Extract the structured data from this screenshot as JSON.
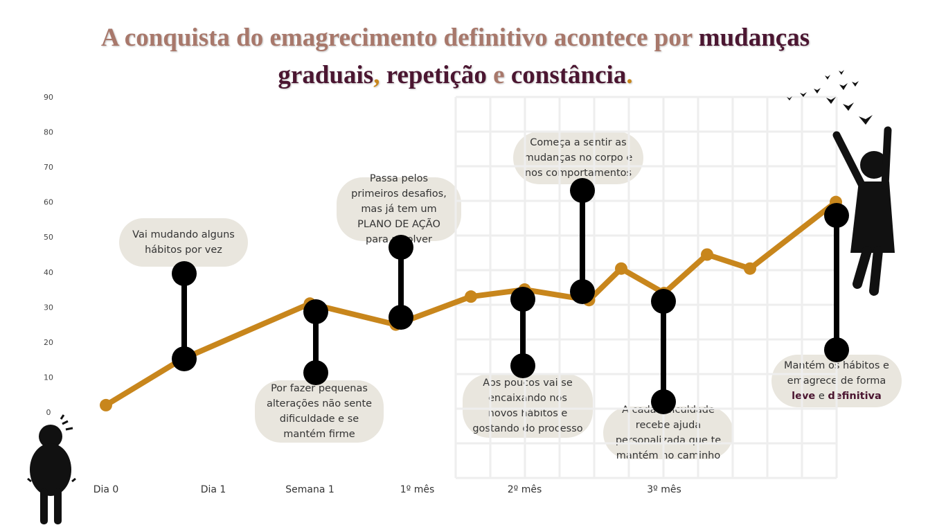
{
  "chart_data": {
    "type": "line",
    "title_parts": [
      {
        "text": "A conquista do emagrecimento definitivo acontece por ",
        "color": "#a8786b"
      },
      {
        "text": "mudanças graduais",
        "color": "#4b1631"
      },
      {
        "text": ", ",
        "color": "#c8861c"
      },
      {
        "text": "repetição",
        "color": "#4b1631"
      },
      {
        "text": " e ",
        "color": "#a8786b"
      },
      {
        "text": "constância",
        "color": "#4b1631"
      },
      {
        "text": ".",
        "color": "#c8861c"
      }
    ],
    "x": [
      0,
      0.7,
      1.9,
      2.7,
      3.4,
      3.9,
      4.5,
      4.8,
      5.2,
      5.6,
      6.0,
      6.8
    ],
    "series": [
      {
        "color": "#c8861c",
        "values": [
          2,
          15,
          31,
          25,
          33,
          35,
          32,
          41,
          34,
          45,
          41,
          60
        ]
      }
    ],
    "xlim": [
      0,
      7
    ],
    "xticks": [
      {
        "value": 0,
        "label": "Dia 0"
      },
      {
        "value": 1,
        "label": "Dia 1"
      },
      {
        "value": 1.9,
        "label": "Semana 1"
      },
      {
        "value": 2.9,
        "label": "1º mês"
      },
      {
        "value": 3.9,
        "label": "2º mês"
      },
      {
        "value": 5.2,
        "label": "3º mês"
      }
    ],
    "ylim": [
      0,
      90
    ],
    "yticks": [
      0,
      10,
      20,
      30,
      40,
      50,
      60,
      70,
      80,
      90
    ],
    "annotations": [
      {
        "parts": [
          {
            "text": "Vai mudando alguns hábitos por vez"
          }
        ]
      },
      {
        "parts": [
          {
            "text": "Por fazer pequenas alterações não sente dificuldade e se mantém firme"
          }
        ]
      },
      {
        "parts": [
          {
            "text": "Passa pelos primeiros desafios, mas já tem um PLANO DE AÇÃO para resolver"
          }
        ]
      },
      {
        "parts": [
          {
            "text": "Aos poucos vai se encaixando nos novos hábitos e gostando do processo"
          }
        ]
      },
      {
        "parts": [
          {
            "text": "Começa a sentir as mudanças no corpo e nos comportamentos"
          }
        ]
      },
      {
        "parts": [
          {
            "text": "A cada dificuldade recebe ajuda personalizada que te mantém no caminho"
          }
        ]
      },
      {
        "parts": [
          {
            "text": "Mantém os hábitos e emagrece de forma "
          },
          {
            "text": "leve",
            "bold": true
          },
          {
            "text": " e "
          },
          {
            "text": "definitiva",
            "bold": true
          }
        ]
      }
    ]
  }
}
